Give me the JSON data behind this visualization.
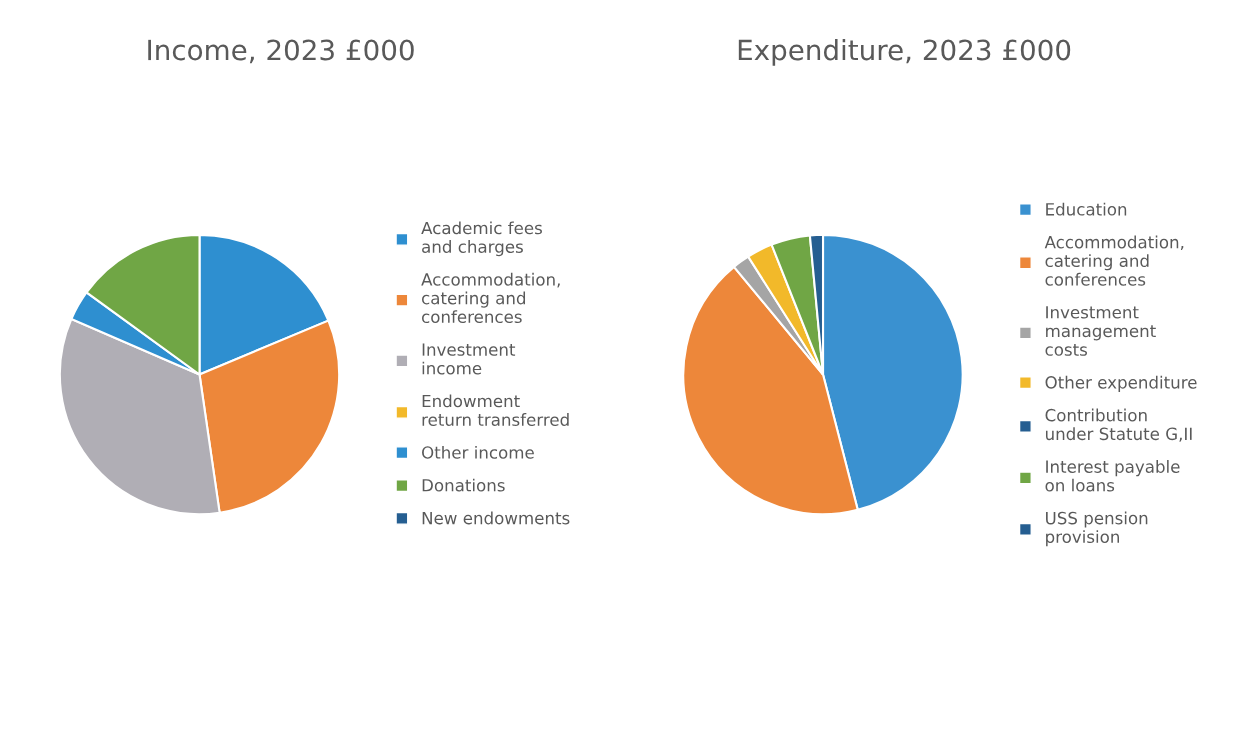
{
  "chart_data": [
    {
      "type": "pie",
      "title": "Income, 2023 £000",
      "legend": "right",
      "categories": [
        "Academic fees\nand charges",
        "Accommodation,\ncatering and\nconferences",
        "Investment\nincome",
        "Endowment\nreturn transferred",
        "Other income",
        "Donations",
        "New endowments"
      ],
      "values": [
        18.7,
        29,
        33.8,
        0,
        3.5,
        15,
        0
      ],
      "colors": [
        "#2e8fd0",
        "#ed873a",
        "#b0aeb5",
        "#f2b92a",
        "#2e8fd0",
        "#70a645",
        "#255e91"
      ]
    },
    {
      "type": "pie",
      "title": "Expenditure, 2023 £000",
      "legend": "right",
      "categories": [
        "Education",
        "Accommodation,\ncatering and\nconferences",
        "Investment\nmanagement\ncosts",
        "Other expenditure",
        "Contribution\nunder Statute G,II",
        "Interest payable\non loans",
        "USS pension\nprovision"
      ],
      "values": [
        46,
        43,
        2,
        3,
        0,
        4.5,
        1.5
      ],
      "colors": [
        "#3a91d0",
        "#ed873a",
        "#a5a5a5",
        "#f2b92a",
        "#255e91",
        "#70a645",
        "#255e91"
      ]
    }
  ]
}
